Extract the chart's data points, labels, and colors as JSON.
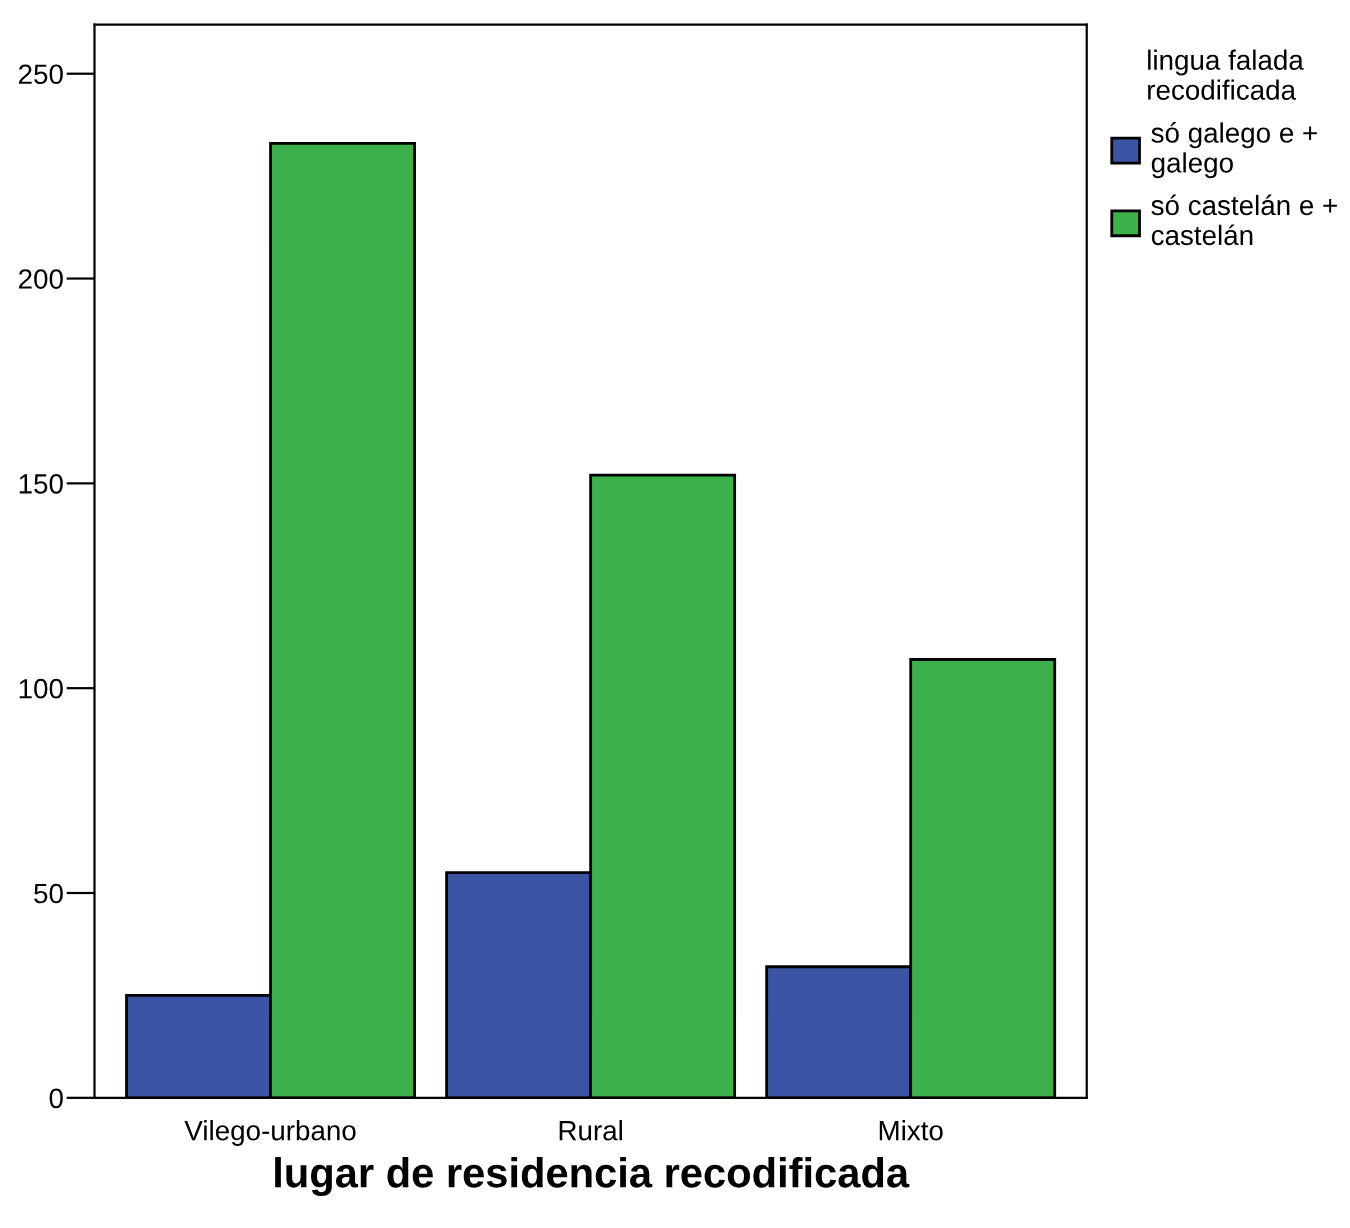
{
  "chart_data": {
    "type": "bar",
    "xlabel": "lugar de residencia recodificada",
    "legend_title": "lingua falada\nrecodificada",
    "categories": [
      "Vilego-urbano",
      "Rural",
      "Mixto"
    ],
    "series": [
      {
        "name": "só galego e +\ngalego",
        "color": "#3b54a3",
        "values": [
          25,
          55,
          32
        ]
      },
      {
        "name": "só castelán e +\ncastelán",
        "color": "#3cb04a",
        "values": [
          233,
          152,
          107
        ]
      }
    ],
    "ylim": [
      0,
      262
    ],
    "yticks": [
      0,
      50,
      100,
      150,
      200,
      250
    ],
    "legend": "top right",
    "grid": false
  }
}
